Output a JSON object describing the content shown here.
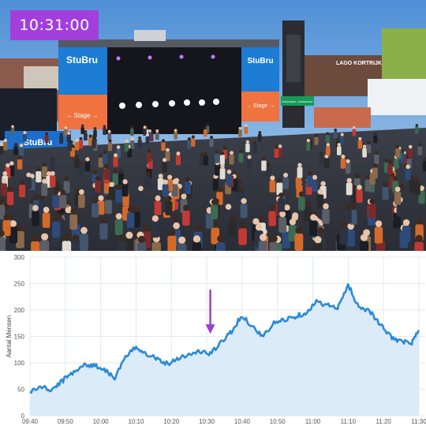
{
  "timestamp": "10:31:00",
  "photo": {
    "stage_logo_left": "StuBru",
    "stage_logo_right": "StuBru",
    "stage_sign_left": "→ Stage →",
    "stage_sign_right": "→ Stage →",
    "banner_left": "StuBru",
    "building_sign": "LAGO KORTRIJK",
    "green_sign": "OVERSTEEK - ROEMENGEL"
  },
  "colors": {
    "accent": "#a23fdc",
    "line": "#2b8ad8",
    "area": "#dcebf8",
    "arrow": "#9b3fd4",
    "stage_blue": "#1d7cd3",
    "stage_orange": "#f0733f"
  },
  "chart_data": {
    "type": "area",
    "title": "",
    "xlabel": "",
    "ylabel": "Aantal Mensen",
    "ylim": [
      0,
      300
    ],
    "yticks": [
      "0",
      "50",
      "100",
      "150",
      "200",
      "250",
      "300"
    ],
    "xticks": [
      "09:40",
      "09:50",
      "10:00",
      "10:10",
      "10:20",
      "10:30",
      "10:40",
      "10:50",
      "11:00",
      "11:10",
      "11:20",
      "11:30"
    ],
    "grid": true,
    "series": [
      {
        "x": [
          "09:40",
          "09:43",
          "09:46",
          "09:49",
          "09:52",
          "09:55",
          "09:58",
          "10:01",
          "10:04",
          "10:07",
          "10:10",
          "10:13",
          "10:16",
          "10:19",
          "10:22",
          "10:25",
          "10:28",
          "10:31",
          "10:34",
          "10:37",
          "10:40",
          "10:43",
          "10:46",
          "10:49",
          "10:52",
          "10:55",
          "10:58",
          "11:01",
          "11:04",
          "11:07",
          "11:10",
          "11:13",
          "11:16",
          "11:19",
          "11:22",
          "11:25",
          "11:28",
          "11:30"
        ],
        "values": [
          45,
          55,
          48,
          65,
          82,
          95,
          96,
          88,
          72,
          110,
          130,
          118,
          108,
          98,
          110,
          115,
          122,
          117,
          138,
          160,
          190,
          168,
          150,
          175,
          182,
          188,
          195,
          215,
          210,
          202,
          248,
          205,
          200,
          172,
          150,
          140,
          138,
          162
        ]
      }
    ],
    "annotation": {
      "type": "arrow",
      "x": "10:31",
      "y": 152
    }
  }
}
